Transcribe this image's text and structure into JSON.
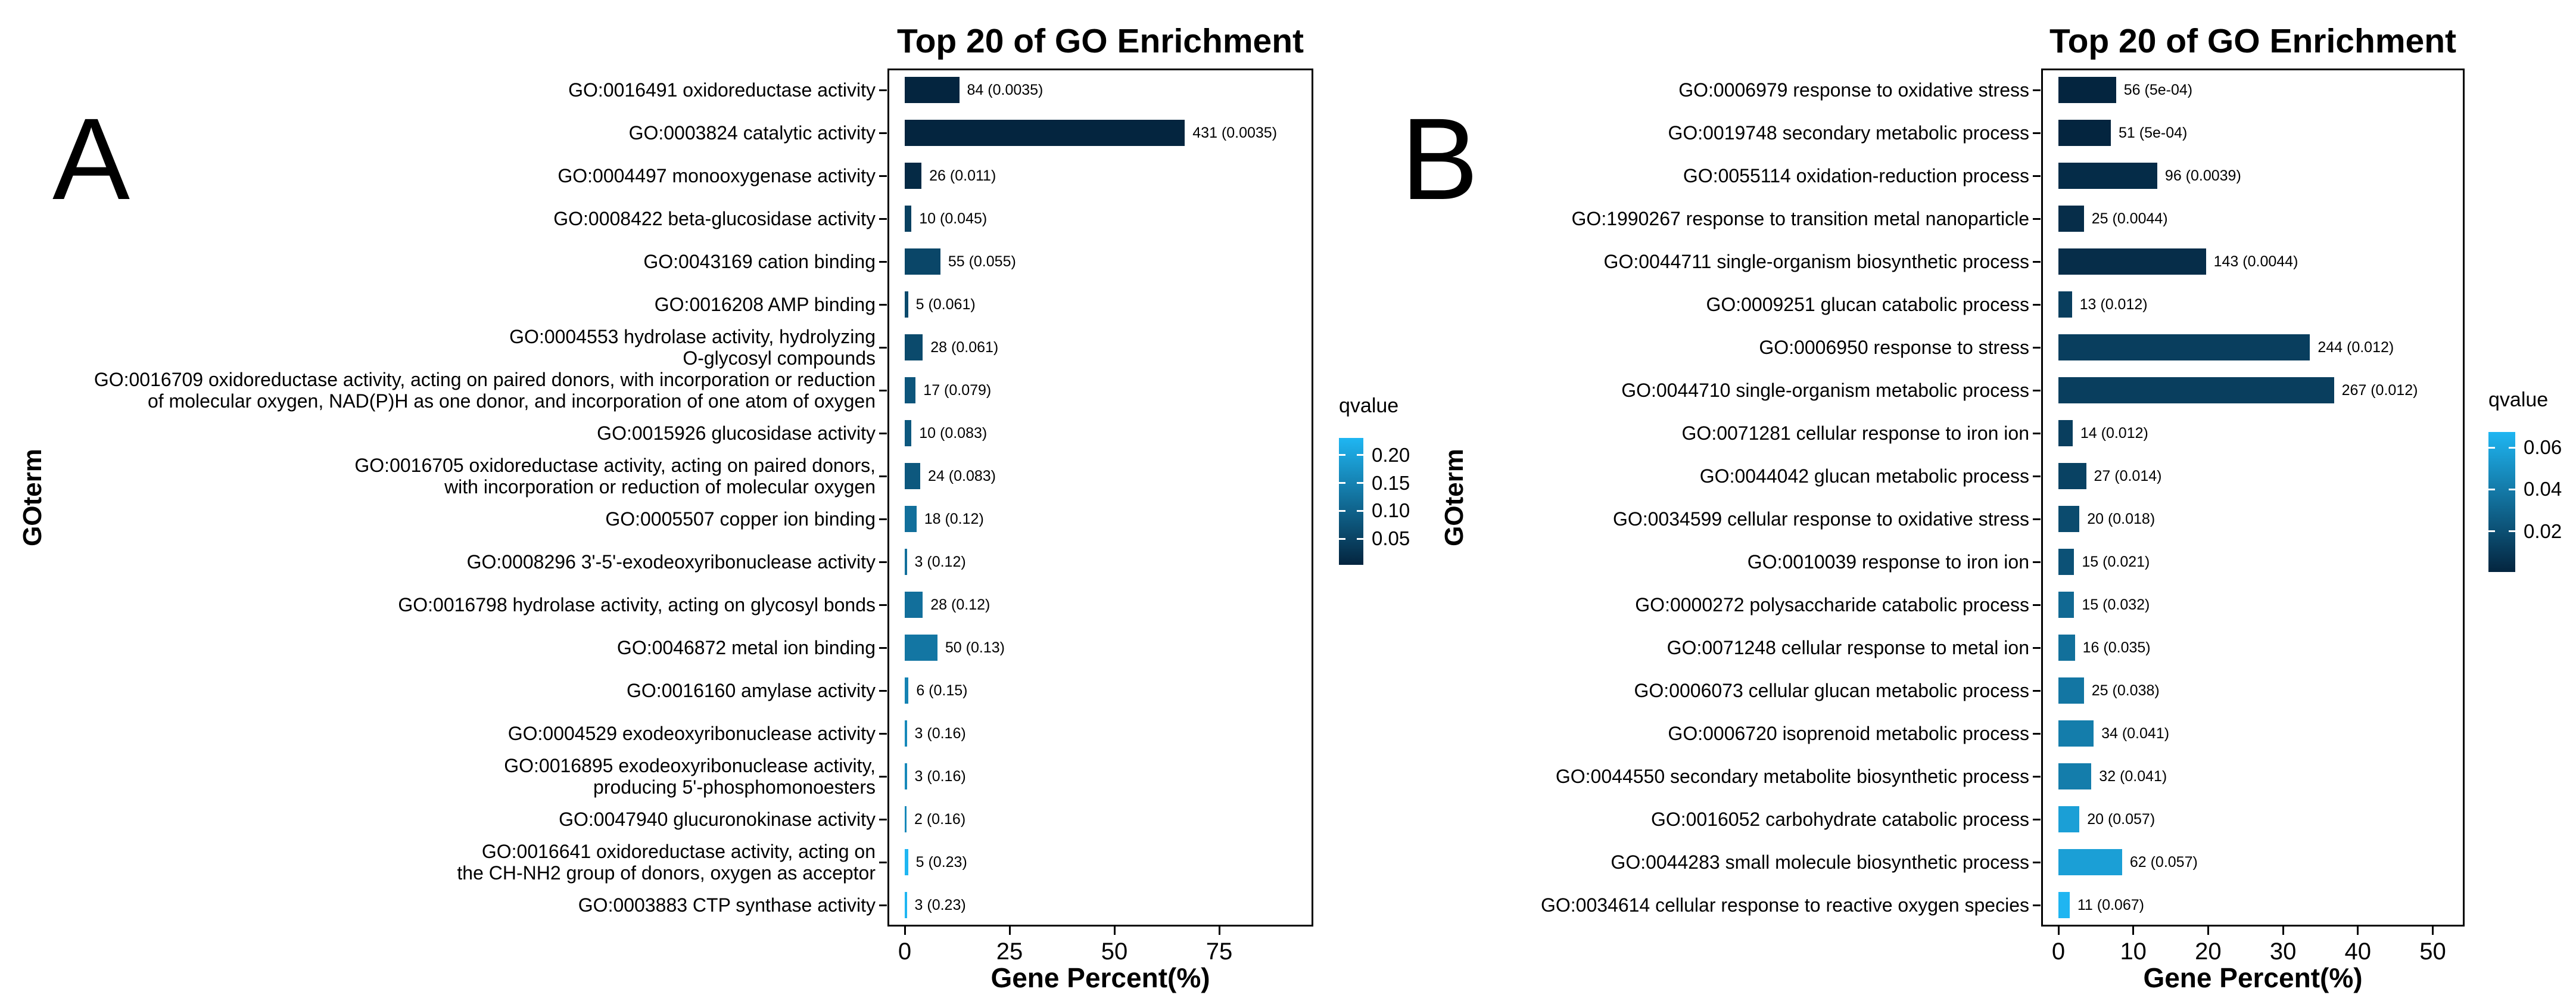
{
  "figure": {
    "background": "#ffffff",
    "text_color": "#000000"
  },
  "chart_data": {
    "type": "bar",
    "orientation": "horizontal",
    "colors": {
      "qvalue_low_dark": "#04253F",
      "qvalue_high_light": "#1FB6F2"
    },
    "panels": [
      {
        "panel_letter": "A",
        "title": "Top 20 of GO Enrichment",
        "xlabel": "Gene Percent(%)",
        "ylabel": "GOterm",
        "x_ticks": [
          0,
          25,
          50,
          75
        ],
        "x_max": 97,
        "legend": {
          "title": "qvalue",
          "tick_labels": [
            "0.20",
            "0.15",
            "0.10",
            "0.05"
          ],
          "tick_values": [
            0.2,
            0.15,
            0.1,
            0.05
          ],
          "color_range": [
            0.0035,
            0.2305
          ]
        },
        "rows": [
          {
            "label": "GO:0016491 oxidoreductase activity",
            "genes": 84,
            "qvalue": 0.0035,
            "percent": 13.0,
            "value_label": "84 (0.0035)"
          },
          {
            "label": "GO:0003824 catalytic activity",
            "genes": 431,
            "qvalue": 0.0035,
            "percent": 66.8,
            "value_label": "431 (0.0035)"
          },
          {
            "label": "GO:0004497 monooxygenase activity",
            "genes": 26,
            "qvalue": 0.011,
            "percent": 4.0,
            "value_label": "26 (0.011)"
          },
          {
            "label": "GO:0008422 beta-glucosidase activity",
            "genes": 10,
            "qvalue": 0.045,
            "percent": 1.6,
            "value_label": "10 (0.045)"
          },
          {
            "label": "GO:0043169 cation binding",
            "genes": 55,
            "qvalue": 0.055,
            "percent": 8.5,
            "value_label": "55 (0.055)"
          },
          {
            "label": "GO:0016208 AMP binding",
            "genes": 5,
            "qvalue": 0.061,
            "percent": 0.8,
            "value_label": "5 (0.061)"
          },
          {
            "label": "GO:0004553 hydrolase activity, hydrolyzing\nO-glycosyl compounds",
            "genes": 28,
            "qvalue": 0.061,
            "percent": 4.3,
            "value_label": "28 (0.061)"
          },
          {
            "label": "GO:0016709 oxidoreductase activity, acting on paired donors, with incorporation or reduction\nof molecular oxygen, NAD(P)H as one donor, and incorporation of one atom of oxygen",
            "genes": 17,
            "qvalue": 0.079,
            "percent": 2.6,
            "value_label": "17 (0.079)"
          },
          {
            "label": "GO:0015926 glucosidase activity",
            "genes": 10,
            "qvalue": 0.083,
            "percent": 1.6,
            "value_label": "10 (0.083)"
          },
          {
            "label": "GO:0016705 oxidoreductase activity, acting on paired donors,\nwith incorporation or reduction of molecular oxygen",
            "genes": 24,
            "qvalue": 0.083,
            "percent": 3.7,
            "value_label": "24 (0.083)"
          },
          {
            "label": "GO:0005507 copper ion binding",
            "genes": 18,
            "qvalue": 0.12,
            "percent": 2.8,
            "value_label": "18 (0.12)"
          },
          {
            "label": "GO:0008296 3'-5'-exodeoxyribonuclease activity",
            "genes": 3,
            "qvalue": 0.12,
            "percent": 0.5,
            "value_label": "3 (0.12)"
          },
          {
            "label": "GO:0016798 hydrolase activity, acting on glycosyl bonds",
            "genes": 28,
            "qvalue": 0.12,
            "percent": 4.3,
            "value_label": "28 (0.12)"
          },
          {
            "label": "GO:0046872 metal ion binding",
            "genes": 50,
            "qvalue": 0.13,
            "percent": 7.8,
            "value_label": "50 (0.13)"
          },
          {
            "label": "GO:0016160 amylase activity",
            "genes": 6,
            "qvalue": 0.15,
            "percent": 0.9,
            "value_label": "6 (0.15)"
          },
          {
            "label": "GO:0004529 exodeoxyribonuclease activity",
            "genes": 3,
            "qvalue": 0.16,
            "percent": 0.5,
            "value_label": "3 (0.16)"
          },
          {
            "label": "GO:0016895 exodeoxyribonuclease activity,\nproducing 5'-phosphomonoesters",
            "genes": 3,
            "qvalue": 0.16,
            "percent": 0.5,
            "value_label": "3 (0.16)"
          },
          {
            "label": "GO:0047940 glucuronokinase activity",
            "genes": 2,
            "qvalue": 0.16,
            "percent": 0.3,
            "value_label": "2 (0.16)"
          },
          {
            "label": "GO:0016641 oxidoreductase activity, acting on\nthe CH-NH2 group of donors, oxygen as acceptor",
            "genes": 5,
            "qvalue": 0.23,
            "percent": 0.8,
            "value_label": "5 (0.23)"
          },
          {
            "label": "GO:0003883 CTP synthase activity",
            "genes": 3,
            "qvalue": 0.23,
            "percent": 0.5,
            "value_label": "3 (0.23)"
          }
        ]
      },
      {
        "panel_letter": "B",
        "title": "Top 20 of GO Enrichment",
        "xlabel": "Gene Percent(%)",
        "ylabel": "GOterm",
        "x_ticks": [
          0,
          10,
          20,
          30,
          40,
          50
        ],
        "x_max": 54,
        "legend": {
          "title": "qvalue",
          "tick_labels": [
            "0.06",
            "0.04",
            "0.02"
          ],
          "tick_values": [
            0.06,
            0.04,
            0.02
          ],
          "color_range": [
            0.0005,
            0.0675
          ]
        },
        "rows": [
          {
            "label": "GO:0006979 response to oxidative stress",
            "genes": 56,
            "qvalue": 0.0005,
            "percent": 7.7,
            "value_label": "56 (5e-04)"
          },
          {
            "label": "GO:0019748 secondary metabolic process",
            "genes": 51,
            "qvalue": 0.0005,
            "percent": 7.0,
            "value_label": "51 (5e-04)"
          },
          {
            "label": "GO:0055114 oxidation-reduction process",
            "genes": 96,
            "qvalue": 0.0039,
            "percent": 13.2,
            "value_label": "96 (0.0039)"
          },
          {
            "label": "GO:1990267 response to transition metal nanoparticle",
            "genes": 25,
            "qvalue": 0.0044,
            "percent": 3.4,
            "value_label": "25 (0.0044)"
          },
          {
            "label": "GO:0044711 single-organism biosynthetic process",
            "genes": 143,
            "qvalue": 0.0044,
            "percent": 19.7,
            "value_label": "143 (0.0044)"
          },
          {
            "label": "GO:0009251 glucan catabolic process",
            "genes": 13,
            "qvalue": 0.012,
            "percent": 1.8,
            "value_label": "13 (0.012)"
          },
          {
            "label": "GO:0006950 response to stress",
            "genes": 244,
            "qvalue": 0.012,
            "percent": 33.6,
            "value_label": "244 (0.012)"
          },
          {
            "label": "GO:0044710 single-organism metabolic process",
            "genes": 267,
            "qvalue": 0.012,
            "percent": 36.8,
            "value_label": "267 (0.012)"
          },
          {
            "label": "GO:0071281 cellular response to iron ion",
            "genes": 14,
            "qvalue": 0.012,
            "percent": 1.9,
            "value_label": "14 (0.012)"
          },
          {
            "label": "GO:0044042 glucan metabolic process",
            "genes": 27,
            "qvalue": 0.014,
            "percent": 3.7,
            "value_label": "27 (0.014)"
          },
          {
            "label": "GO:0034599 cellular response to oxidative stress",
            "genes": 20,
            "qvalue": 0.018,
            "percent": 2.8,
            "value_label": "20 (0.018)"
          },
          {
            "label": "GO:0010039 response to iron ion",
            "genes": 15,
            "qvalue": 0.021,
            "percent": 2.1,
            "value_label": "15 (0.021)"
          },
          {
            "label": "GO:0000272 polysaccharide catabolic process",
            "genes": 15,
            "qvalue": 0.032,
            "percent": 2.1,
            "value_label": "15 (0.032)"
          },
          {
            "label": "GO:0071248 cellular response to metal ion",
            "genes": 16,
            "qvalue": 0.035,
            "percent": 2.2,
            "value_label": "16 (0.035)"
          },
          {
            "label": "GO:0006073 cellular glucan metabolic process",
            "genes": 25,
            "qvalue": 0.038,
            "percent": 3.4,
            "value_label": "25 (0.038)"
          },
          {
            "label": "GO:0006720 isoprenoid metabolic process",
            "genes": 34,
            "qvalue": 0.041,
            "percent": 4.7,
            "value_label": "34 (0.041)"
          },
          {
            "label": "GO:0044550 secondary metabolite biosynthetic process",
            "genes": 32,
            "qvalue": 0.041,
            "percent": 4.4,
            "value_label": "32 (0.041)"
          },
          {
            "label": "GO:0016052 carbohydrate catabolic process",
            "genes": 20,
            "qvalue": 0.057,
            "percent": 2.8,
            "value_label": "20 (0.057)"
          },
          {
            "label": "GO:0044283 small molecule biosynthetic process",
            "genes": 62,
            "qvalue": 0.057,
            "percent": 8.5,
            "value_label": "62 (0.057)"
          },
          {
            "label": "GO:0034614 cellular response to reactive oxygen species",
            "genes": 11,
            "qvalue": 0.067,
            "percent": 1.5,
            "value_label": "11 (0.067)"
          }
        ]
      }
    ]
  }
}
